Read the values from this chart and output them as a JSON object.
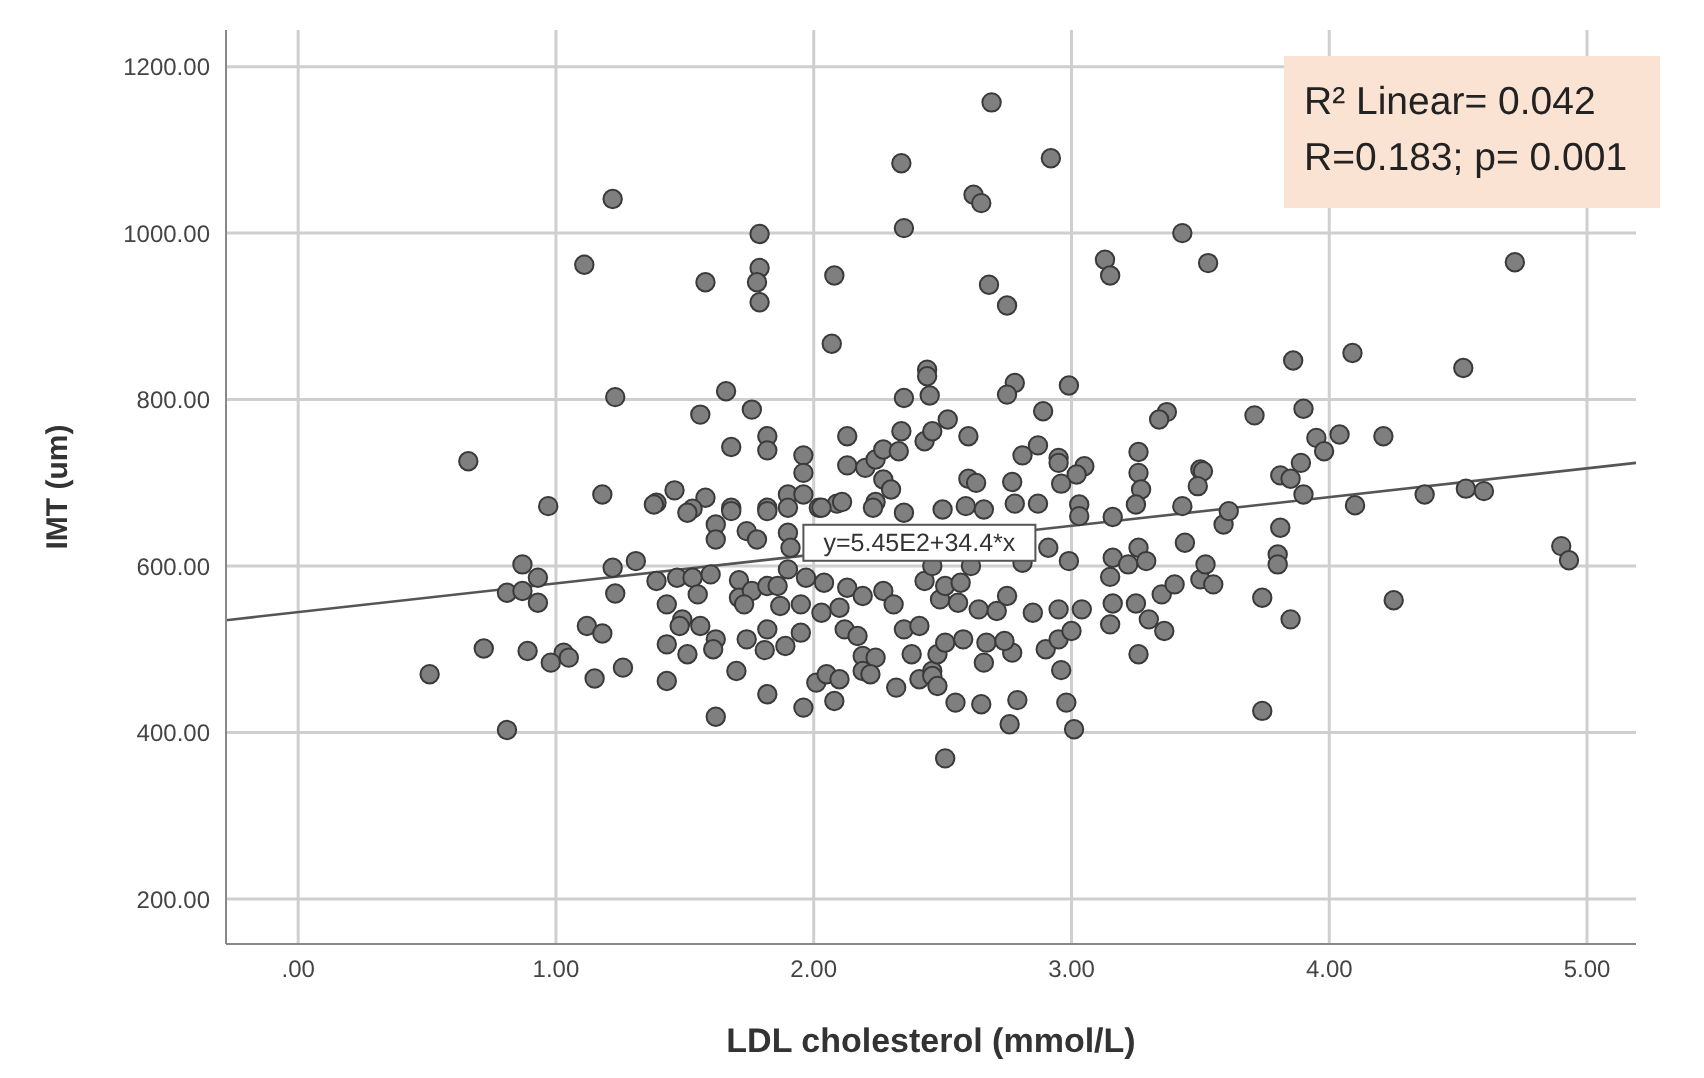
{
  "chart_data": {
    "type": "scatter",
    "xlabel": "LDL cholesterol (mmol/L)",
    "ylabel": "IMT (um)",
    "xlim": [
      -0.28,
      5.19
    ],
    "ylim": [
      146,
      1244
    ],
    "xticks": [
      {
        "value": 0,
        "label": ".00"
      },
      {
        "value": 1,
        "label": "1.00"
      },
      {
        "value": 2,
        "label": "2.00"
      },
      {
        "value": 3,
        "label": "3.00"
      },
      {
        "value": 4,
        "label": "4.00"
      },
      {
        "value": 5,
        "label": "5.00"
      }
    ],
    "yticks": [
      {
        "value": 200,
        "label": "200.00"
      },
      {
        "value": 400,
        "label": "400.00"
      },
      {
        "value": 600,
        "label": "600.00"
      },
      {
        "value": 800,
        "label": "800.00"
      },
      {
        "value": 1000,
        "label": "1000.00"
      },
      {
        "value": 1200,
        "label": "1200.00"
      }
    ],
    "grid": true,
    "marker": "circle",
    "annotations": [
      {
        "text": "y=5.45E2+34.4*x",
        "x": 2.41,
        "y": 628
      },
      "R² Linear= 0.042",
      "R=0.183; p= 0.001"
    ],
    "series": [
      {
        "color": "#7f7f7f",
        "x": [
          2.34,
          1.22,
          2.35,
          1.79,
          1.11,
          1.58,
          1.79,
          1.78,
          1.79,
          2.08,
          2.07,
          1.23,
          1.66,
          1.56,
          1.76,
          1.68,
          1.82,
          1.82,
          2.13,
          1.96,
          1.96,
          2.13,
          2.2,
          2.24,
          2.27,
          2.33,
          2.34,
          2.44,
          2.44,
          2.45,
          2.35,
          2.43,
          2.46,
          2.27,
          2.3,
          0.66,
          0.97,
          1.18,
          1.39,
          1.46,
          1.58,
          1.53,
          1.68,
          1.82,
          1.9,
          1.96,
          2.02,
          2.09,
          2.11,
          2.24,
          2.23,
          2.69,
          2.92,
          2.62,
          2.65,
          3.43,
          3.13,
          3.15,
          3.53,
          4.72,
          2.68,
          2.75,
          3.86,
          4.09,
          4.52,
          2.78,
          2.75,
          2.99,
          2.52,
          2.89,
          2.6,
          3.37,
          3.34,
          3.71,
          3.9,
          3.95,
          4.04,
          4.21,
          3.98,
          2.81,
          2.87,
          2.95,
          2.95,
          3.26,
          3.26,
          3.05,
          3.02,
          2.77,
          2.96,
          2.6,
          2.63,
          3.5,
          3.51,
          3.81,
          3.85,
          3.89,
          3.27,
          3.49,
          3.9,
          4.37,
          4.53,
          4.6,
          4.1,
          2.59,
          2.5,
          2.66,
          2.78,
          2.87,
          3.03,
          3.25,
          3.43,
          1.38,
          1.51,
          1.68,
          1.82,
          1.9,
          2.03,
          1.62,
          1.62,
          1.74,
          1.78,
          1.9,
          1.91,
          2.05,
          2.35,
          0.87,
          0.93,
          0.81,
          0.87,
          0.93,
          1.22,
          1.31,
          1.23,
          1.39,
          1.47,
          1.53,
          1.55,
          1.6,
          1.71,
          1.71,
          1.76,
          1.82,
          1.86,
          1.9,
          1.97,
          2.04,
          2.13,
          1.43,
          1.49,
          1.73,
          1.87,
          1.95,
          2.03,
          2.1,
          2.19,
          2.27,
          2.31,
          1.12,
          1.18,
          1.48,
          1.56,
          1.62,
          1.82,
          1.95,
          2.12,
          2.17,
          2.35,
          1.43,
          1.51,
          1.61,
          1.74,
          1.81,
          1.89,
          0.72,
          0.89,
          1.03,
          1.05,
          0.98,
          1.15,
          1.26,
          1.43,
          1.7,
          2.01,
          2.05,
          2.1,
          2.08,
          2.19,
          2.24,
          2.19,
          2.22,
          2.38,
          2.32,
          2.41,
          2.46,
          1.82,
          1.96,
          1.62,
          0.51,
          0.81,
          2.51,
          2.65,
          2.55,
          2.76,
          2.79,
          2.98,
          3.01,
          3.74,
          2.96,
          2.66,
          2.77,
          2.9,
          3.26,
          2.48,
          2.46,
          2.48,
          2.67,
          2.74,
          2.58,
          2.51,
          2.95,
          3.0,
          3.15,
          3.3,
          3.36,
          3.85,
          3.16,
          3.25,
          3.35,
          3.4,
          3.74,
          4.25,
          3.15,
          3.5,
          3.55,
          2.99,
          3.16,
          3.22,
          3.26,
          3.29,
          3.52,
          3.8,
          3.8,
          3.81,
          3.44,
          3.59,
          3.61,
          4.9,
          4.93,
          3.16,
          3.03,
          2.75,
          2.64,
          2.71,
          2.56,
          2.49,
          2.85,
          2.95,
          3.04,
          2.41,
          2.43,
          2.51,
          2.57,
          2.46,
          2.61,
          2.81,
          2.91
        ],
        "values": [
          1084,
          1041,
          1006,
          999,
          962,
          941,
          958,
          941,
          917,
          949,
          867,
          803,
          810,
          782,
          788,
          743,
          756,
          739,
          756,
          733,
          712,
          721,
          718,
          728,
          740,
          738,
          762,
          836,
          828,
          805,
          802,
          750,
          762,
          704,
          692,
          726,
          672,
          686,
          676,
          691,
          682,
          669,
          670,
          670,
          686,
          686,
          670,
          675,
          677,
          677,
          670,
          1157,
          1090,
          1046,
          1036,
          1000,
          968,
          949,
          964,
          965,
          938,
          913,
          847,
          856,
          838,
          820,
          806,
          817,
          776,
          786,
          756,
          785,
          776,
          781,
          789,
          754,
          758,
          756,
          738,
          733,
          745,
          730,
          724,
          737,
          712,
          720,
          710,
          701,
          699,
          705,
          700,
          716,
          714,
          709,
          705,
          724,
          692,
          696,
          686,
          686,
          693,
          690,
          673,
          672,
          668,
          668,
          675,
          675,
          674,
          674,
          672,
          674,
          664,
          666,
          666,
          670,
          670,
          650,
          632,
          642,
          632,
          640,
          622,
          null,
          664,
          602,
          586,
          568,
          570,
          556,
          598,
          606,
          567,
          582,
          586,
          586,
          566,
          590,
          583,
          562,
          570,
          576,
          576,
          596,
          586,
          580,
          574,
          554,
          536,
          554,
          552,
          554,
          544,
          550,
          564,
          570,
          554,
          528,
          519,
          528,
          528,
          512,
          524,
          520,
          524,
          516,
          524,
          506,
          494,
          500,
          512,
          499,
          504,
          501,
          498,
          496,
          490,
          484,
          465,
          478,
          462,
          474,
          460,
          470,
          464,
          438,
          492,
          490,
          474,
          470,
          494,
          454,
          464,
          474,
          446,
          430,
          419,
          470,
          403,
          369,
          434,
          436,
          410,
          439,
          436,
          404,
          426,
          475,
          484,
          496,
          500,
          494,
          494,
          468,
          456,
          508,
          510,
          512,
          508,
          512,
          522,
          530,
          536,
          522,
          536,
          555,
          555,
          566,
          578,
          562,
          559,
          587,
          584,
          578,
          606,
          610,
          602,
          622,
          606,
          602,
          614,
          602,
          646,
          628,
          650,
          666,
          624,
          607,
          659,
          660,
          564,
          548,
          546,
          556,
          560,
          544,
          548,
          548,
          528,
          582,
          576,
          580,
          600,
          600,
          604,
          622
        ]
      },
      {
        "type": "line",
        "color": "#555555",
        "marker": "none",
        "x": [
          -0.28,
          5.19
        ],
        "values": [
          535,
          724
        ]
      }
    ]
  }
}
